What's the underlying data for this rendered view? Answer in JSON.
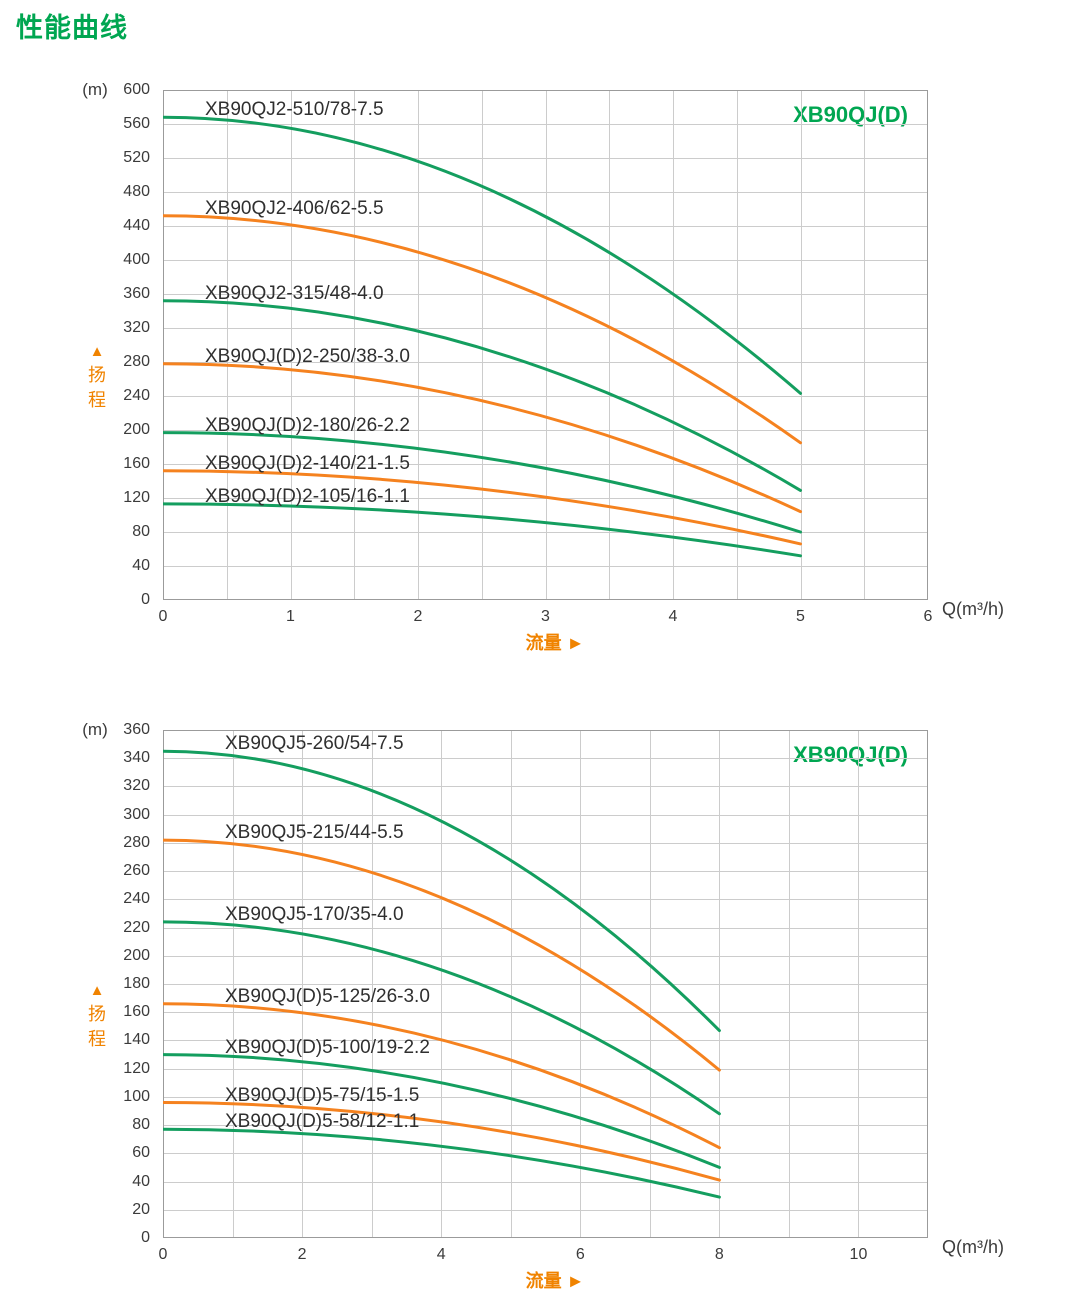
{
  "page_title": "性能曲线",
  "colors": {
    "green": "#149E5F",
    "orange": "#F5821F",
    "heading_green": "#00A651",
    "axis_label_orange": "#F08300",
    "tick_text": "#3b3b3b",
    "grid": "#cccccc",
    "plot_border": "#9b9b9b"
  },
  "chart_data": [
    {
      "type": "line",
      "corner_label": "XB90QJ(D)",
      "y_unit": "(m)",
      "y_axis_marker": "▲",
      "y_axis_label": "扬程",
      "x_axis_label": "流量 ►",
      "x_unit": "Q(m³/h)",
      "xlim": [
        0,
        6
      ],
      "ylim": [
        0,
        600
      ],
      "x_tick_step": 1,
      "y_tick_step": 40,
      "x_grid_step": 0.5,
      "grid": true,
      "legend_position": "labels-above-curves",
      "series": [
        {
          "name": "XB90QJ2-510/78-7.5",
          "color": "green",
          "x": [
            0,
            1,
            2,
            3,
            4,
            5
          ],
          "y": [
            568,
            555,
            516,
            451,
            360,
            243
          ]
        },
        {
          "name": "XB90QJ2-406/62-5.5",
          "color": "orange",
          "x": [
            0,
            1,
            2,
            3,
            4,
            5
          ],
          "y": [
            452,
            441,
            409,
            356,
            281,
            185
          ]
        },
        {
          "name": "XB90QJ2-315/48-4.0",
          "color": "green",
          "x": [
            0,
            1,
            2,
            3,
            4,
            5
          ],
          "y": [
            352,
            343,
            316,
            272,
            209,
            129
          ]
        },
        {
          "name": "XB90QJ(D)2-250/38-3.0",
          "color": "orange",
          "x": [
            0,
            1,
            2,
            3,
            4,
            5
          ],
          "y": [
            278,
            271,
            250,
            215,
            167,
            104
          ]
        },
        {
          "name": "XB90QJ(D)2-180/26-2.2",
          "color": "green",
          "x": [
            0,
            1,
            2,
            3,
            4,
            5
          ],
          "y": [
            197,
            192,
            178,
            155,
            122,
            80
          ]
        },
        {
          "name": "XB90QJ(D)2-140/21-1.5",
          "color": "orange",
          "x": [
            0,
            1,
            2,
            3,
            4,
            5
          ],
          "y": [
            152,
            149,
            138,
            121,
            97,
            66
          ]
        },
        {
          "name": "XB90QJ(D)2-105/16-1.1",
          "color": "green",
          "x": [
            0,
            1,
            2,
            3,
            4,
            5
          ],
          "y": [
            113,
            111,
            103,
            91,
            74,
            52
          ]
        }
      ]
    },
    {
      "type": "line",
      "corner_label": "XB90QJ(D)",
      "y_unit": "(m)",
      "y_axis_marker": "▲",
      "y_axis_label": "扬程",
      "x_axis_label": "流量 ►",
      "x_unit": "Q(m³/h)",
      "xlim": [
        0,
        11
      ],
      "ylim": [
        0,
        360
      ],
      "x_tick_step": 2,
      "y_tick_step": 20,
      "x_grid_step": 1,
      "grid": true,
      "legend_position": "labels-above-curves",
      "series": [
        {
          "name": "XB90QJ5-260/54-7.5",
          "color": "green",
          "x": [
            0,
            2,
            4,
            6,
            8
          ],
          "y": [
            345,
            333,
            296,
            234,
            147
          ]
        },
        {
          "name": "XB90QJ5-215/44-5.5",
          "color": "orange",
          "x": [
            0,
            2,
            4,
            6,
            8
          ],
          "y": [
            282,
            272,
            241,
            190,
            119
          ]
        },
        {
          "name": "XB90QJ5-170/35-4.0",
          "color": "green",
          "x": [
            0,
            2,
            4,
            6,
            8
          ],
          "y": [
            224,
            216,
            190,
            148,
            88
          ]
        },
        {
          "name": "XB90QJ(D)5-125/26-3.0",
          "color": "orange",
          "x": [
            0,
            2,
            4,
            6,
            8
          ],
          "y": [
            166,
            160,
            141,
            109,
            64
          ]
        },
        {
          "name": "XB90QJ(D)5-100/19-2.2",
          "color": "green",
          "x": [
            0,
            2,
            4,
            6,
            8
          ],
          "y": [
            130,
            125,
            110,
            85,
            50
          ]
        },
        {
          "name": "XB90QJ(D)5-75/15-1.5",
          "color": "orange",
          "x": [
            0,
            2,
            4,
            6,
            8
          ],
          "y": [
            96,
            93,
            82,
            65,
            41
          ]
        },
        {
          "name": "XB90QJ(D)5-58/12-1.1",
          "color": "green",
          "x": [
            0,
            2,
            4,
            6,
            8
          ],
          "y": [
            77,
            74,
            65,
            50,
            29
          ]
        }
      ]
    }
  ]
}
